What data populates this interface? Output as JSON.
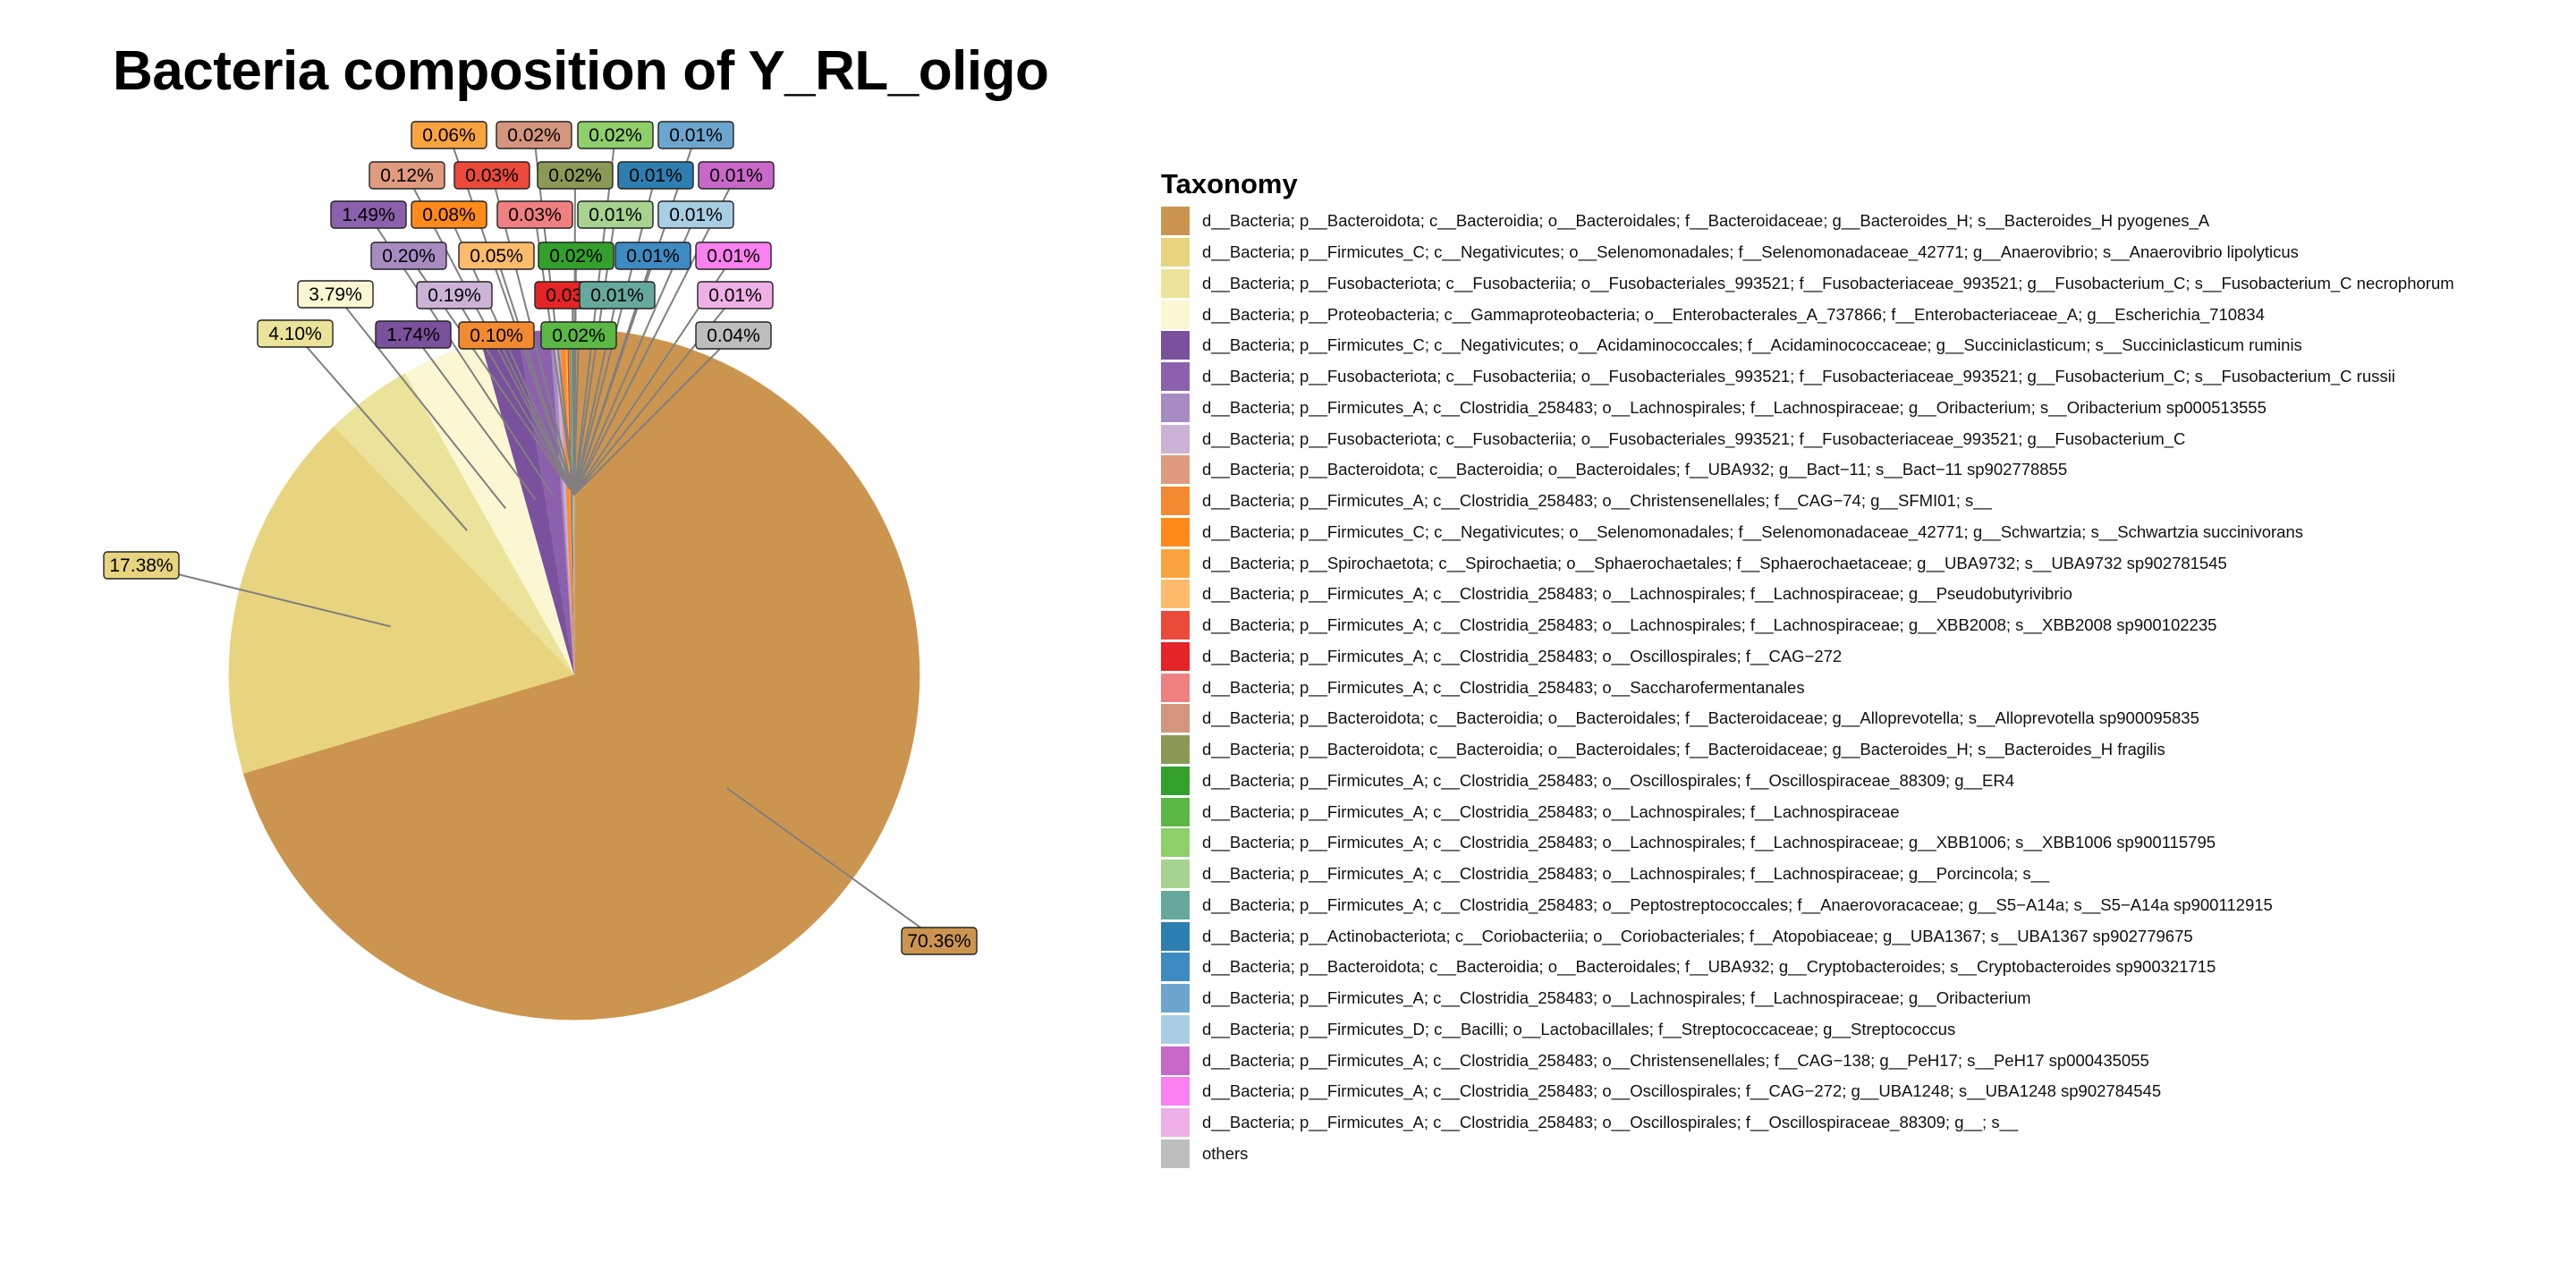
{
  "chart_data": {
    "type": "pie",
    "title": "Bacteria composition of Y_RL_oligo",
    "legend_title": "Taxonomy",
    "legend_position": "right",
    "series": [
      {
        "name": "d__Bacteria; p__Bacteroidota; c__Bacteroidia; o__Bacteroidales; f__Bacteroidaceae; g__Bacteroides_H; s__Bacteroides_H pyogenes_A",
        "value": 70.36,
        "label": "70.36%",
        "color": "#CC954F"
      },
      {
        "name": "d__Bacteria; p__Firmicutes_C; c__Negativicutes; o__Selenomonadales; f__Selenomonadaceae_42771; g__Anaerovibrio; s__Anaerovibrio lipolyticus",
        "value": 17.38,
        "label": "17.38%",
        "color": "#E8D47E"
      },
      {
        "name": "d__Bacteria; p__Fusobacteriota; c__Fusobacteriia; o__Fusobacteriales_993521; f__Fusobacteriaceae_993521; g__Fusobacterium_C; s__Fusobacterium_C necrophorum",
        "value": 4.1,
        "label": "4.10%",
        "color": "#ECE39A"
      },
      {
        "name": "d__Bacteria; p__Proteobacteria; c__Gammaproteobacteria; o__Enterobacterales_A_737866; f__Enterobacteriaceae_A; g__Escherichia_710834",
        "value": 3.79,
        "label": "3.79%",
        "color": "#FAF7D2"
      },
      {
        "name": "d__Bacteria; p__Firmicutes_C; c__Negativicutes; o__Acidaminococcales; f__Acidaminococcaceae; g__Succiniclasticum; s__Succiniclasticum ruminis",
        "value": 1.74,
        "label": "1.74%",
        "color": "#7A519C"
      },
      {
        "name": "d__Bacteria; p__Fusobacteriota; c__Fusobacteriia; o__Fusobacteriales_993521; f__Fusobacteriaceae_993521; g__Fusobacterium_C; s__Fusobacterium_C russii",
        "value": 1.49,
        "label": "1.49%",
        "color": "#8B61AD"
      },
      {
        "name": "d__Bacteria; p__Firmicutes_A; c__Clostridia_258483; o__Lachnospirales; f__Lachnospiraceae; g__Oribacterium; s__Oribacterium sp000513555",
        "value": 0.2,
        "label": "0.20%",
        "color": "#A78BC3"
      },
      {
        "name": "d__Bacteria; p__Fusobacteriota; c__Fusobacteriia; o__Fusobacteriales_993521; f__Fusobacteriaceae_993521; g__Fusobacterium_C",
        "value": 0.19,
        "label": "0.19%",
        "color": "#CCB3D6"
      },
      {
        "name": "d__Bacteria; p__Bacteroidota; c__Bacteroidia; o__Bacteroidales; f__UBA932; g__Bact−11; s__Bact−11 sp902778855",
        "value": 0.12,
        "label": "0.12%",
        "color": "#E09A7E"
      },
      {
        "name": "d__Bacteria; p__Firmicutes_A; c__Clostridia_258483; o__Christensenellales; f__CAG−74; g__SFMI01; s__",
        "value": 0.1,
        "label": "0.10%",
        "color": "#F38A30"
      },
      {
        "name": "d__Bacteria; p__Firmicutes_C; c__Negativicutes; o__Selenomonadales; f__Selenomonadaceae_42771; g__Schwartzia; s__Schwartzia succinivorans",
        "value": 0.08,
        "label": "0.08%",
        "color": "#FF8A1A"
      },
      {
        "name": "d__Bacteria; p__Spirochaetota; c__Spirochaetia; o__Sphaerochaetales; f__Sphaerochaetaceae; g__UBA9732; s__UBA9732 sp902781545",
        "value": 0.06,
        "label": "0.06%",
        "color": "#F9A33F"
      },
      {
        "name": "d__Bacteria; p__Firmicutes_A; c__Clostridia_258483; o__Lachnospirales; f__Lachnospiraceae; g__Pseudobutyrivibrio",
        "value": 0.05,
        "label": "0.05%",
        "color": "#FDBB6B"
      },
      {
        "name": "d__Bacteria; p__Firmicutes_A; c__Clostridia_258483; o__Lachnospirales; f__Lachnospiraceae; g__XBB2008; s__XBB2008 sp900102235",
        "value": 0.03,
        "label": "0.03%",
        "color": "#EB4A3B"
      },
      {
        "name": "d__Bacteria; p__Firmicutes_A; c__Clostridia_258483; o__Oscillospirales; f__CAG−272",
        "value": 0.03,
        "label": "0.03%",
        "color": "#E52427"
      },
      {
        "name": "d__Bacteria; p__Firmicutes_A; c__Clostridia_258483; o__Saccharofermentanales",
        "value": 0.03,
        "label": "0.03%",
        "color": "#F08080"
      },
      {
        "name": "d__Bacteria; p__Bacteroidota; c__Bacteroidia; o__Bacteroidales; f__Bacteroidaceae; g__Alloprevotella; s__Alloprevotella sp900095835",
        "value": 0.02,
        "label": "0.02%",
        "color": "#D4957E"
      },
      {
        "name": "d__Bacteria; p__Bacteroidota; c__Bacteroidia; o__Bacteroidales; f__Bacteroidaceae; g__Bacteroides_H; s__Bacteroides_H fragilis",
        "value": 0.02,
        "label": "0.02%",
        "color": "#8A9A56"
      },
      {
        "name": "d__Bacteria; p__Firmicutes_A; c__Clostridia_258483; o__Oscillospirales; f__Oscillospiraceae_88309; g__ER4",
        "value": 0.02,
        "label": "0.02%",
        "color": "#33A02C"
      },
      {
        "name": "d__Bacteria; p__Firmicutes_A; c__Clostridia_258483; o__Lachnospirales; f__Lachnospiraceae",
        "value": 0.02,
        "label": "0.02%",
        "color": "#5CB845"
      },
      {
        "name": "d__Bacteria; p__Firmicutes_A; c__Clostridia_258483; o__Lachnospirales; f__Lachnospiraceae; g__XBB1006; s__XBB1006 sp900115795",
        "value": 0.02,
        "label": "0.02%",
        "color": "#8FCF6A"
      },
      {
        "name": "d__Bacteria; p__Firmicutes_A; c__Clostridia_258483; o__Lachnospirales; f__Lachnospiraceae; g__Porcincola; s__",
        "value": 0.01,
        "label": "0.01%",
        "color": "#A6D38F"
      },
      {
        "name": "d__Bacteria; p__Firmicutes_A; c__Clostridia_258483; o__Peptostreptococcales; f__Anaerovoracaceae; g__S5−A14a; s__S5−A14a sp900112915",
        "value": 0.01,
        "label": "0.01%",
        "color": "#66A89C"
      },
      {
        "name": "d__Bacteria; p__Actinobacteriota; c__Coriobacteriia; o__Coriobacteriales; f__Atopobiaceae; g__UBA1367; s__UBA1367 sp902779675",
        "value": 0.01,
        "label": "0.01%",
        "color": "#2C7FB0"
      },
      {
        "name": "d__Bacteria; p__Bacteroidota; c__Bacteroidia; o__Bacteroidales; f__UBA932; g__Cryptobacteroides; s__Cryptobacteroides sp900321715",
        "value": 0.01,
        "label": "0.01%",
        "color": "#3D8BC2"
      },
      {
        "name": "d__Bacteria; p__Firmicutes_A; c__Clostridia_258483; o__Lachnospirales; f__Lachnospiraceae; g__Oribacterium",
        "value": 0.01,
        "label": "0.01%",
        "color": "#6CA6CE"
      },
      {
        "name": "d__Bacteria; p__Firmicutes_D; c__Bacilli; o__Lactobacillales; f__Streptococcaceae; g__Streptococcus",
        "value": 0.01,
        "label": "0.01%",
        "color": "#A8CEE4"
      },
      {
        "name": "d__Bacteria; p__Firmicutes_A; c__Clostridia_258483; o__Christensenellales; f__CAG−138; g__PeH17; s__PeH17 sp000435055",
        "value": 0.01,
        "label": "0.01%",
        "color": "#C868C8"
      },
      {
        "name": "d__Bacteria; p__Firmicutes_A; c__Clostridia_258483; o__Oscillospirales; f__CAG−272; g__UBA1248; s__UBA1248 sp902784545",
        "value": 0.01,
        "label": "0.01%",
        "color": "#FB80F0"
      },
      {
        "name": "d__Bacteria; p__Firmicutes_A; c__Clostridia_258483; o__Oscillospirales; f__Oscillospiraceae_88309; g__; s__",
        "value": 0.01,
        "label": "0.01%",
        "color": "#EEB0E6"
      },
      {
        "name": "others",
        "value": 0.04,
        "label": "0.04%",
        "color": "#BDBDBD"
      }
    ]
  }
}
